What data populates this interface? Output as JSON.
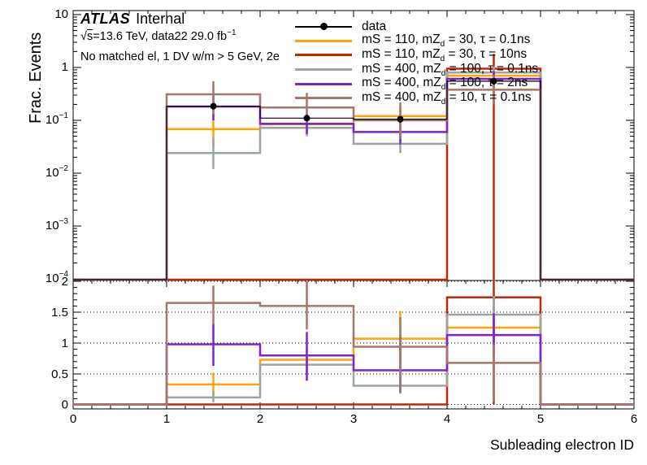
{
  "header": {
    "experiment": "ATLAS",
    "status": "Internal",
    "sqrt_sym": "√",
    "sqrt_s": "s",
    "cme_rest": "=13.6 TeV, data22 29.0 fb",
    "cme_sup": "−1",
    "selection": "No matched el, 1 DV w/m > 5 GeV, 2e"
  },
  "legend": {
    "position": "top-right",
    "entries": [
      {
        "pre": "data",
        "sub": "",
        "post": ""
      },
      {
        "pre": "mS = 110, mZ",
        "sub": "d",
        "post": " = 30, τ = 0.1ns"
      },
      {
        "pre": "mS = 110, mZ",
        "sub": "d",
        "post": " = 30, τ = 10ns"
      },
      {
        "pre": "mS = 400, mZ",
        "sub": "d",
        "post": " = 100, τ = 0.1ns"
      },
      {
        "pre": "mS = 400, mZ",
        "sub": "d",
        "post": " = 100, τ = 2ns"
      },
      {
        "pre": "mS = 400, mZ",
        "sub": "d",
        "post": " = 10, τ = 0.1ns"
      }
    ]
  },
  "chart_data": {
    "type": "histogram+ratio",
    "title": "",
    "xlabel": "Subleading electron ID",
    "ylabel_main": "Frac. Events",
    "x_edges": [
      0,
      1,
      2,
      3,
      4,
      5,
      6
    ],
    "x_tick_labels": [
      "0",
      "1",
      "2",
      "3",
      "4",
      "5",
      "6"
    ],
    "x_minor_step": 0.2,
    "main_axis": {
      "scale": "log",
      "range": [
        0.0001,
        12
      ],
      "tick_labels": [
        {
          "text": "10",
          "sup": "",
          "value": 10
        },
        {
          "text": "1",
          "sup": "",
          "value": 1
        },
        {
          "text": "10",
          "sup": "−1",
          "value": 0.1
        },
        {
          "text": "10",
          "sup": "−2",
          "value": 0.01
        },
        {
          "text": "10",
          "sup": "−3",
          "value": 0.001
        },
        {
          "text": "10",
          "sup": "−4",
          "value": 0.0001
        }
      ]
    },
    "ratio_axis": {
      "range": [
        0,
        2
      ],
      "tick_labels": [
        {
          "text": "2",
          "value": 2
        },
        {
          "text": "1.5",
          "value": 1.5
        },
        {
          "text": "1",
          "value": 1
        },
        {
          "text": "0.5",
          "value": 0.5
        },
        {
          "text": "0",
          "value": 0
        }
      ],
      "minor_step": 0.1,
      "gridlines": [
        0,
        0.5,
        1,
        1.5,
        2
      ],
      "grid_style": "dotted"
    },
    "series": [
      {
        "key": "data",
        "style": "points",
        "color": "#000000",
        "main": [
          null,
          0.185,
          0.11,
          0.105,
          0.55,
          null
        ],
        "main_err": [
          null,
          [
            0.16,
            0.21
          ],
          [
            0.095,
            0.125
          ],
          [
            0.09,
            0.12
          ],
          [
            0.5,
            0.6
          ],
          null
        ],
        "ratio": null,
        "ratio_err": null
      },
      {
        "key": "mS110_mZd30_0p1ns",
        "style": "hist",
        "color": "#ffa405",
        "main": [
          0,
          0.068,
          0.084,
          0.12,
          0.7,
          0
        ],
        "main_err": [
          null,
          [
            0.03,
            0.13
          ],
          [
            0.055,
            0.12
          ],
          [
            0.08,
            0.18
          ],
          [
            0.55,
            0.88
          ],
          null
        ],
        "ratio": [
          0,
          0.33,
          0.73,
          1.07,
          1.25,
          0
        ],
        "ratio_err": [
          null,
          [
            0.15,
            0.52
          ],
          [
            0.6,
            0.9
          ],
          [
            0.63,
            1.52
          ],
          [
            1.0,
            1.5
          ],
          null
        ]
      },
      {
        "key": "mS110_mZd30_10ns",
        "style": "hist",
        "color": "#c2270a",
        "main": [
          0,
          0,
          0,
          0,
          0.95,
          0
        ],
        "main_err": [
          null,
          null,
          null,
          null,
          [
            9e-05,
            1.8
          ],
          null
        ],
        "ratio": [
          0,
          0,
          0,
          0,
          1.74,
          0
        ],
        "ratio_err": [
          null,
          null,
          null,
          null,
          [
            0.0,
            2.05
          ],
          null
        ]
      },
      {
        "key": "mS400_mZd100_0p1ns",
        "style": "hist",
        "color": "#9aa5a0",
        "main": [
          0,
          0.024,
          0.072,
          0.036,
          0.8,
          0
        ],
        "main_err": [
          null,
          [
            0.012,
            0.048
          ],
          [
            0.05,
            0.1
          ],
          [
            0.024,
            0.056
          ],
          [
            0.62,
            1.05
          ],
          null
        ],
        "ratio": [
          0,
          0.12,
          0.65,
          0.31,
          1.46,
          0
        ],
        "ratio_err": [
          null,
          [
            0.04,
            0.22
          ],
          [
            0.5,
            0.82
          ],
          [
            0.18,
            0.46
          ],
          [
            1.2,
            1.76
          ],
          null
        ]
      },
      {
        "key": "mS400_mZd100_2ns",
        "style": "hist",
        "color": "#7d24cc",
        "main": [
          0,
          0.182,
          0.086,
          0.06,
          0.61,
          0
        ],
        "main_err": [
          null,
          [
            0.1,
            0.3
          ],
          [
            0.055,
            0.135
          ],
          [
            0.035,
            0.105
          ],
          [
            0.45,
            0.85
          ],
          null
        ],
        "ratio": [
          0,
          0.98,
          0.8,
          0.56,
          1.13,
          0
        ],
        "ratio_err": [
          null,
          [
            0.63,
            1.32
          ],
          [
            0.39,
            1.18
          ],
          [
            0.2,
            1.1
          ],
          [
            0.82,
            1.48
          ],
          null
        ]
      },
      {
        "key": "mS400_mZd10_0p1ns",
        "style": "hist",
        "color": "#a6756b",
        "main": [
          0,
          0.31,
          0.175,
          0.1,
          0.38,
          0
        ],
        "main_err": [
          null,
          [
            0.13,
            0.55
          ],
          [
            0.09,
            0.33
          ],
          [
            0.045,
            0.22
          ],
          [
            0.2,
            0.72
          ],
          null
        ],
        "ratio": [
          0,
          1.65,
          1.6,
          0.94,
          0.68,
          0
        ],
        "ratio_err": [
          null,
          [
            1.3,
            1.93
          ],
          [
            1.22,
            2.05
          ],
          [
            0.2,
            1.42
          ],
          [
            0.05,
            0.98
          ],
          null
        ]
      }
    ]
  }
}
